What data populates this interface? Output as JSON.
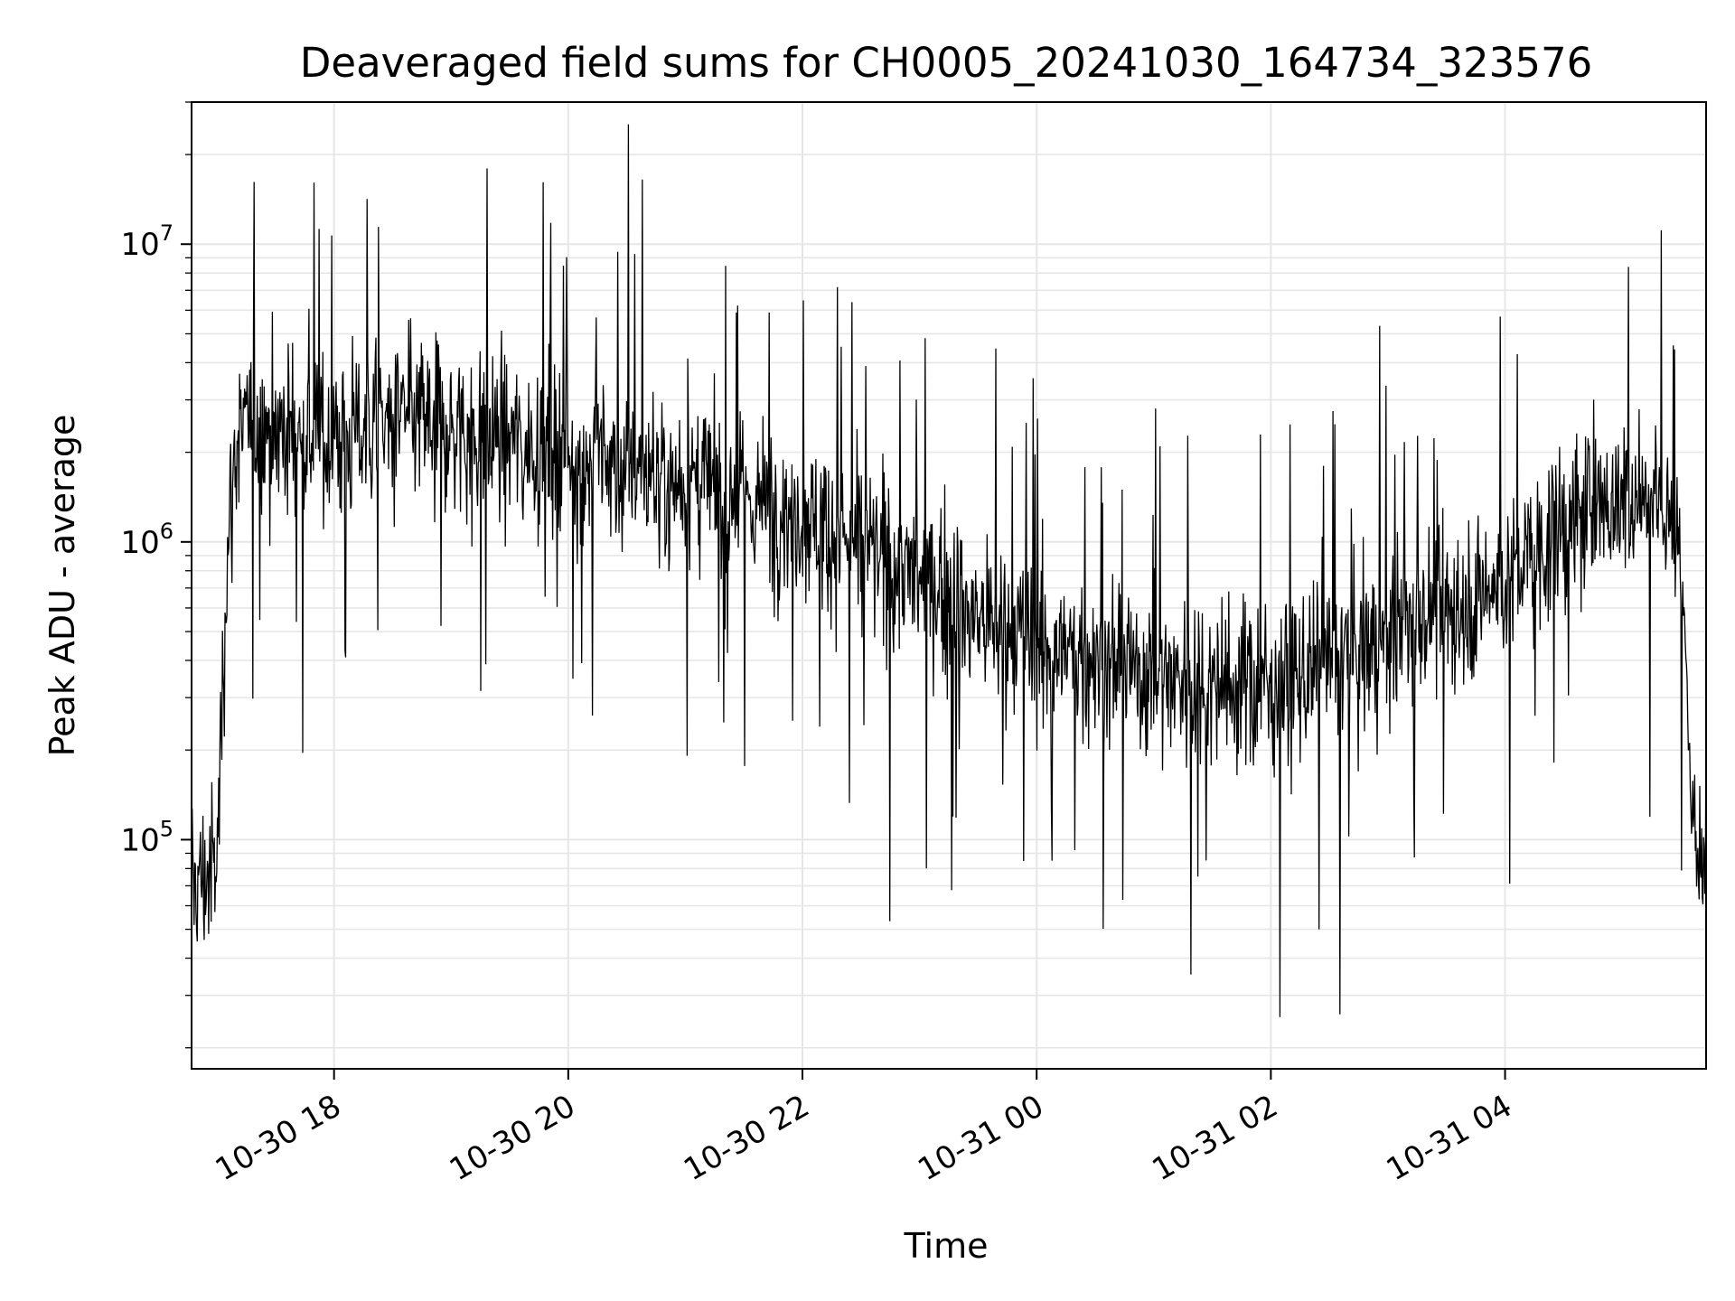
{
  "chart_data": {
    "type": "line",
    "title": "Deaveraged field sums for CH0005_20241030_164734_323576",
    "xlabel": "Time",
    "ylabel": "Peak ADU - average",
    "yscale": "log",
    "ylim": [
      17000,
      30000000
    ],
    "xlim": [
      "2024-10-30 16:47",
      "2024-10-31 05:43"
    ],
    "x_ticks": [
      {
        "t": "2024-10-30 18:00",
        "label": "10-30 18"
      },
      {
        "t": "2024-10-30 20:00",
        "label": "10-30 20"
      },
      {
        "t": "2024-10-30 22:00",
        "label": "10-30 22"
      },
      {
        "t": "2024-10-31 00:00",
        "label": "10-31 00"
      },
      {
        "t": "2024-10-31 02:00",
        "label": "10-31 02"
      },
      {
        "t": "2024-10-31 04:00",
        "label": "10-31 04"
      }
    ],
    "y_ticks": [
      {
        "value": 100000,
        "base": "10",
        "exp": "5"
      },
      {
        "value": 1000000,
        "base": "10",
        "exp": "6"
      },
      {
        "value": 10000000,
        "base": "10",
        "exp": "7"
      }
    ],
    "grid": true,
    "line_color": "#000000",
    "series": [
      {
        "x": [
          "2024-10-30 16:47",
          "2024-10-30 16:55",
          "2024-10-30 17:00",
          "2024-10-30 17:05",
          "2024-10-30 17:10",
          "2024-10-30 17:20",
          "2024-10-30 17:30",
          "2024-10-30 17:45",
          "2024-10-30 18:00",
          "2024-10-30 18:15",
          "2024-10-30 18:30",
          "2024-10-30 18:45",
          "2024-10-30 19:00",
          "2024-10-30 19:15",
          "2024-10-30 19:30",
          "2024-10-30 19:45",
          "2024-10-30 20:00",
          "2024-10-30 20:15",
          "2024-10-30 20:30",
          "2024-10-30 20:45",
          "2024-10-30 21:00",
          "2024-10-30 21:15",
          "2024-10-30 21:30",
          "2024-10-30 21:45",
          "2024-10-30 22:00",
          "2024-10-30 22:15",
          "2024-10-30 22:30",
          "2024-10-30 22:45",
          "2024-10-30 23:00",
          "2024-10-30 23:15",
          "2024-10-30 23:30",
          "2024-10-30 23:45",
          "2024-10-31 00:00",
          "2024-10-31 00:15",
          "2024-10-31 00:30",
          "2024-10-31 00:45",
          "2024-10-31 01:00",
          "2024-10-31 01:15",
          "2024-10-31 01:30",
          "2024-10-31 01:45",
          "2024-10-31 02:00",
          "2024-10-31 02:15",
          "2024-10-31 02:30",
          "2024-10-31 02:45",
          "2024-10-31 03:00",
          "2024-10-31 03:15",
          "2024-10-31 03:30",
          "2024-10-31 03:45",
          "2024-10-31 04:00",
          "2024-10-31 04:15",
          "2024-10-31 04:30",
          "2024-10-31 04:45",
          "2024-10-31 05:00",
          "2024-10-31 05:15",
          "2024-10-31 05:25",
          "2024-10-31 05:32",
          "2024-10-31 05:38",
          "2024-10-31 05:43"
        ],
        "y": [
          70000,
          75000,
          80000,
          900000,
          2200000,
          2500000,
          2400000,
          2300000,
          2200000,
          2400000,
          2500000,
          2600000,
          2400000,
          2300000,
          2200000,
          2100000,
          2000000,
          1900000,
          1800000,
          1700000,
          1600000,
          1500000,
          1400000,
          1300000,
          1250000,
          1100000,
          950000,
          850000,
          750000,
          650000,
          550000,
          500000,
          450000,
          420000,
          400000,
          380000,
          360000,
          350000,
          340000,
          330000,
          330000,
          340000,
          380000,
          420000,
          480000,
          550000,
          600000,
          650000,
          750000,
          900000,
          1100000,
          1300000,
          1400000,
          1500000,
          1300000,
          500000,
          80000,
          70000
        ]
      }
    ]
  }
}
